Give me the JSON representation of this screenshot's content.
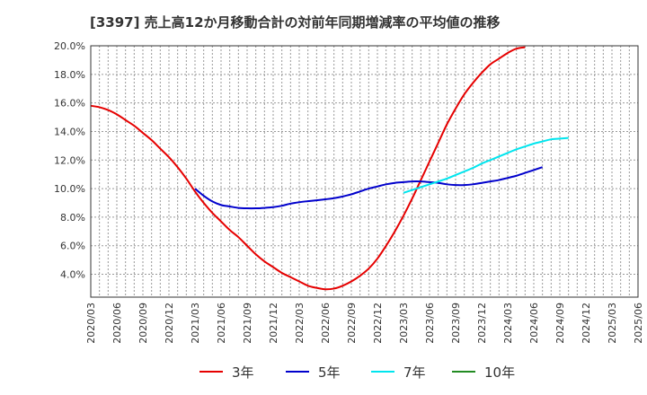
{
  "title": "[3397]  売上高12か月移動合計の対前年同期増減率の平均値の推移",
  "chart_data": {
    "type": "line",
    "title": "[3397]  売上高12か月移動合計の対前年同期増減率の平均値の推移",
    "xlabel": "",
    "ylabel": "",
    "ylim": [
      2.4,
      20.0
    ],
    "yticks": [
      4.0,
      6.0,
      8.0,
      10.0,
      12.0,
      14.0,
      16.0,
      18.0,
      20.0
    ],
    "ytick_labels": [
      "4.0%",
      "6.0%",
      "8.0%",
      "10.0%",
      "12.0%",
      "14.0%",
      "16.0%",
      "18.0%",
      "20.0%"
    ],
    "x_labels": [
      "2020/03",
      "2020/06",
      "2020/09",
      "2020/12",
      "2021/03",
      "2021/06",
      "2021/09",
      "2021/12",
      "2022/03",
      "2022/06",
      "2022/09",
      "2022/12",
      "2023/03",
      "2023/06",
      "2023/09",
      "2023/12",
      "2024/03",
      "2024/06",
      "2024/09",
      "2024/12",
      "2025/03",
      "2025/06"
    ],
    "grid": true,
    "legend_position": "bottom",
    "series": [
      {
        "name": "3年",
        "color": "#e60000",
        "start_index": 0,
        "values": [
          15.8,
          15.7,
          15.5,
          15.2,
          14.8,
          14.4,
          13.9,
          13.4,
          12.8,
          12.2,
          11.5,
          10.7,
          9.8,
          9.0,
          8.3,
          7.7,
          7.1,
          6.6,
          6.0,
          5.4,
          4.9,
          4.5,
          4.1,
          3.8,
          3.5,
          3.2,
          3.05,
          2.95,
          3.0,
          3.2,
          3.5,
          3.9,
          4.4,
          5.1,
          6.0,
          7.0,
          8.1,
          9.3,
          10.6,
          11.9,
          13.2,
          14.5,
          15.6,
          16.6,
          17.4,
          18.1,
          18.7,
          19.1,
          19.5,
          19.8,
          19.9
        ]
      },
      {
        "name": "5年",
        "color": "#0000cc",
        "start_index": 12,
        "values": [
          10.0,
          9.5,
          9.1,
          8.85,
          8.75,
          8.65,
          8.62,
          8.62,
          8.65,
          8.7,
          8.8,
          8.95,
          9.05,
          9.12,
          9.18,
          9.25,
          9.33,
          9.45,
          9.6,
          9.8,
          10.0,
          10.15,
          10.3,
          10.4,
          10.45,
          10.5,
          10.5,
          10.45,
          10.4,
          10.3,
          10.25,
          10.25,
          10.3,
          10.4,
          10.5,
          10.6,
          10.75,
          10.9,
          11.1,
          11.3,
          11.5
        ]
      },
      {
        "name": "7年",
        "color": "#00e5ee",
        "start_index": 36,
        "values": [
          9.7,
          9.9,
          10.1,
          10.3,
          10.5,
          10.7,
          10.95,
          11.2,
          11.45,
          11.75,
          12.0,
          12.25,
          12.5,
          12.75,
          12.95,
          13.15,
          13.3,
          13.45,
          13.5,
          13.55
        ]
      },
      {
        "name": "10年",
        "color": "#228b22",
        "start_index": 0,
        "values": []
      }
    ]
  }
}
